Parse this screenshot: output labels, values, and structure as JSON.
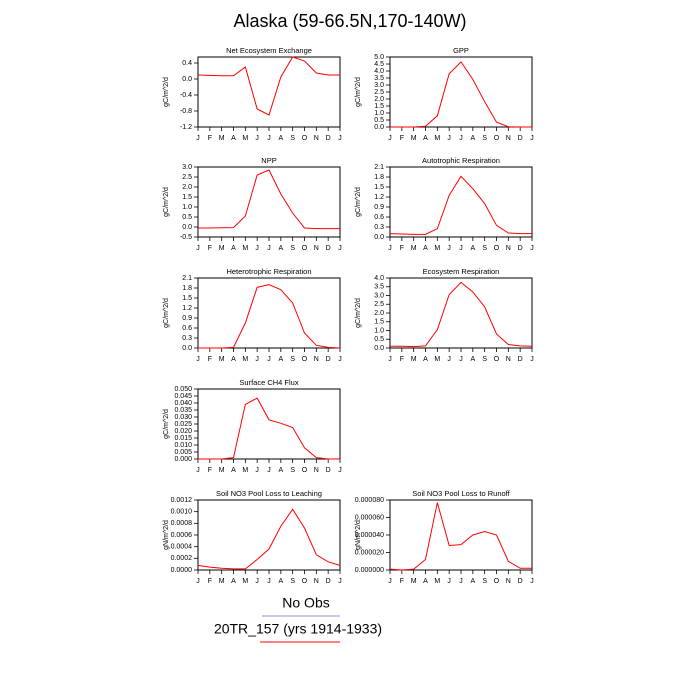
{
  "title": "Alaska (59-66.5N,170-140W)",
  "legend": [
    {
      "name": "No Obs",
      "color": "#9090d0"
    },
    {
      "name": "20TR_157 (yrs 1914-1933)",
      "color": "#ff0000"
    }
  ],
  "chart_data": [
    {
      "type": "line",
      "title": "Net Ecosystem Exchange",
      "y_label": "gC/m^2/d",
      "color": "#ff0000",
      "categories": [
        "J",
        "F",
        "M",
        "A",
        "M",
        "J",
        "J",
        "A",
        "S",
        "O",
        "N",
        "D",
        "J"
      ],
      "values": [
        0.1,
        0.09,
        0.08,
        0.08,
        0.3,
        -0.75,
        -0.9,
        0.05,
        0.55,
        0.45,
        0.15,
        0.1,
        0.1
      ],
      "ylim": [
        -1.2,
        0.55
      ],
      "yticks": [
        -1.2,
        -0.8,
        -0.4,
        {
          "value": 0,
          "label": "0.0"
        },
        0.4
      ]
    },
    {
      "type": "line",
      "title": "GPP",
      "y_label": "gC/m^2/d",
      "color": "#ff0000",
      "categories": [
        "J",
        "F",
        "M",
        "A",
        "M",
        "J",
        "J",
        "A",
        "S",
        "O",
        "N",
        "D",
        "J"
      ],
      "values": [
        0,
        0,
        0,
        0.05,
        0.8,
        3.8,
        4.65,
        3.4,
        1.8,
        0.35,
        0.02,
        0,
        0
      ],
      "ylim": [
        0,
        5
      ],
      "yticks": [
        {
          "value": 0,
          "label": "0.0"
        },
        0.5,
        {
          "value": 1,
          "label": "1.0"
        },
        1.5,
        {
          "value": 2,
          "label": "2.0"
        },
        2.5,
        {
          "value": 3,
          "label": "3.0"
        },
        3.5,
        {
          "value": 4,
          "label": "4.0"
        },
        4.5,
        {
          "value": 5,
          "label": "5.0"
        }
      ]
    },
    {
      "type": "line",
      "title": "NPP",
      "y_label": "gC/m^2/d",
      "color": "#ff0000",
      "categories": [
        "J",
        "F",
        "M",
        "A",
        "M",
        "J",
        "J",
        "A",
        "S",
        "O",
        "N",
        "D",
        "J"
      ],
      "values": [
        -0.05,
        -0.05,
        -0.04,
        -0.03,
        0.55,
        2.6,
        2.85,
        1.65,
        0.7,
        -0.05,
        -0.08,
        -0.08,
        -0.08
      ],
      "ylim": [
        -0.5,
        3
      ],
      "yticks": [
        -0.5,
        {
          "value": 0,
          "label": "0.0"
        },
        0.5,
        {
          "value": 1,
          "label": "1.0"
        },
        1.5,
        {
          "value": 2,
          "label": "2.0"
        },
        2.5,
        {
          "value": 3,
          "label": "3.0"
        }
      ]
    },
    {
      "type": "line",
      "title": "Autotrophic Respiration",
      "y_label": "gC/m^2/d",
      "color": "#ff0000",
      "categories": [
        "J",
        "F",
        "M",
        "A",
        "M",
        "J",
        "J",
        "A",
        "S",
        "O",
        "N",
        "D",
        "J"
      ],
      "values": [
        0.1,
        0.09,
        0.08,
        0.08,
        0.25,
        1.25,
        1.82,
        1.45,
        1.0,
        0.35,
        0.12,
        0.1,
        0.1
      ],
      "ylim": [
        0,
        2.1
      ],
      "yticks": [
        {
          "value": 0,
          "label": "0.0"
        },
        0.3,
        0.6,
        0.9,
        1.2,
        1.5,
        1.8,
        2.1
      ]
    },
    {
      "type": "line",
      "title": "Heterotrophic Respiration",
      "y_label": "gC/m^2/d",
      "color": "#ff0000",
      "categories": [
        "J",
        "F",
        "M",
        "A",
        "M",
        "J",
        "J",
        "A",
        "S",
        "O",
        "N",
        "D",
        "J"
      ],
      "values": [
        0,
        0,
        0,
        0.02,
        0.75,
        1.82,
        1.9,
        1.75,
        1.35,
        0.45,
        0.08,
        0.02,
        0
      ],
      "ylim": [
        0,
        2.1
      ],
      "yticks": [
        {
          "value": 0,
          "label": "0.0"
        },
        0.3,
        0.6,
        0.9,
        1.2,
        1.5,
        1.8,
        2.1
      ]
    },
    {
      "type": "line",
      "title": "Ecosystem Respiration",
      "y_label": "gC/m^2/d",
      "color": "#ff0000",
      "categories": [
        "J",
        "F",
        "M",
        "A",
        "M",
        "J",
        "J",
        "A",
        "S",
        "O",
        "N",
        "D",
        "J"
      ],
      "values": [
        0.1,
        0.1,
        0.08,
        0.12,
        1.05,
        3.05,
        3.75,
        3.2,
        2.35,
        0.8,
        0.2,
        0.12,
        0.1
      ],
      "ylim": [
        0,
        4
      ],
      "yticks": [
        {
          "value": 0,
          "label": "0.0"
        },
        0.5,
        {
          "value": 1,
          "label": "1.0"
        },
        1.5,
        {
          "value": 2,
          "label": "2.0"
        },
        2.5,
        {
          "value": 3,
          "label": "3.0"
        },
        3.5,
        {
          "value": 4,
          "label": "4.0"
        }
      ]
    },
    {
      "type": "line",
      "title": "Surface CH4 Flux",
      "y_label": "gC/m^2/d",
      "color": "#ff0000",
      "categories": [
        "J",
        "F",
        "M",
        "A",
        "M",
        "J",
        "J",
        "A",
        "S",
        "O",
        "N",
        "D",
        "J"
      ],
      "values": [
        0,
        0,
        0,
        0.001,
        0.039,
        0.0435,
        0.028,
        0.0255,
        0.0225,
        0.008,
        0.001,
        0,
        0
      ],
      "ylim": [
        0,
        0.05
      ],
      "yticks": [
        {
          "value": 0,
          "label": "0.000"
        },
        0.005,
        {
          "value": 0.01,
          "label": "0.010"
        },
        0.015,
        {
          "value": 0.02,
          "label": "0.020"
        },
        0.025,
        {
          "value": 0.03,
          "label": "0.030"
        },
        0.035,
        {
          "value": 0.04,
          "label": "0.040"
        },
        0.045,
        {
          "value": 0.05,
          "label": "0.050"
        }
      ]
    },
    {
      "type": "line",
      "title": "Soil NO3 Pool Loss to Leaching",
      "y_label": "gN/m^2/d",
      "color": "#ff0000",
      "categories": [
        "J",
        "F",
        "M",
        "A",
        "M",
        "J",
        "J",
        "A",
        "S",
        "O",
        "N",
        "D",
        "J"
      ],
      "values": [
        8e-05,
        5e-05,
        3e-05,
        2e-05,
        2e-05,
        0.00018,
        0.00036,
        0.00075,
        0.00104,
        0.00072,
        0.00026,
        0.00014,
        8e-05
      ],
      "ylim": [
        0,
        0.0012
      ],
      "yticks": [
        {
          "value": 0,
          "label": "0.0000"
        },
        {
          "value": 0.0002,
          "label": "0.0002"
        },
        {
          "value": 0.0004,
          "label": "0.0004"
        },
        {
          "value": 0.0006,
          "label": "0.0006"
        },
        {
          "value": 0.0008,
          "label": "0.0008"
        },
        {
          "value": 0.001,
          "label": "0.0010"
        },
        {
          "value": 0.0012,
          "label": "0.0012"
        }
      ]
    },
    {
      "type": "line",
      "title": "Soil NO3 Pool Loss to Runoff",
      "y_label": "gN/m^2/d",
      "color": "#ff0000",
      "categories": [
        "J",
        "F",
        "M",
        "A",
        "M",
        "J",
        "J",
        "A",
        "S",
        "O",
        "N",
        "D",
        "J"
      ],
      "values": [
        1e-06,
        0,
        1e-06,
        1.2e-05,
        7.7e-05,
        2.8e-05,
        2.9e-05,
        4e-05,
        4.4e-05,
        4e-05,
        1e-05,
        2e-06,
        2e-06
      ],
      "ylim": [
        0,
        8e-05
      ],
      "yticks": [
        {
          "value": 0,
          "label": "0.000000"
        },
        {
          "value": 2e-05,
          "label": "0.000020"
        },
        {
          "value": 4e-05,
          "label": "0.000040"
        },
        {
          "value": 6e-05,
          "label": "0.000060"
        },
        {
          "value": 8e-05,
          "label": "0.000080"
        }
      ]
    }
  ]
}
